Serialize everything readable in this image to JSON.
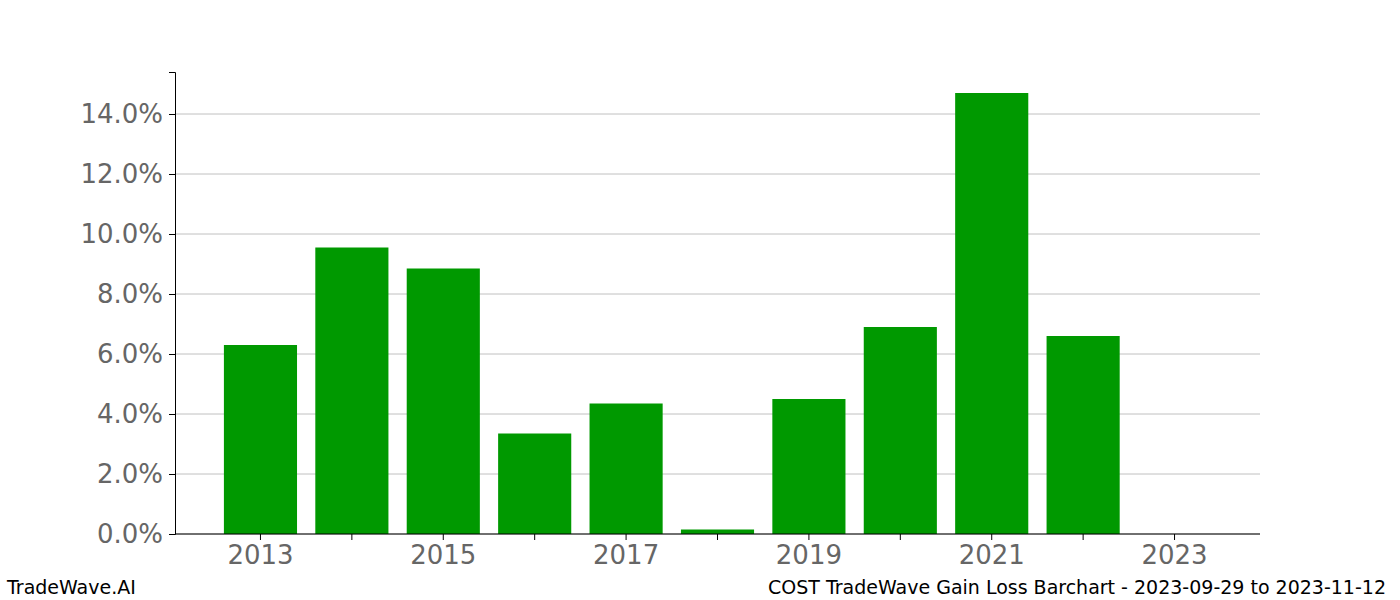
{
  "chart_data": {
    "type": "bar",
    "title": "COST TradeWave Gain Loss Barchart - 2023-09-29 to 2023-11-12",
    "subtitle": "TradeWave.AI",
    "categories": [
      "2013",
      null,
      "2015",
      null,
      "2017",
      null,
      "2019",
      null,
      "2021",
      null,
      "2023"
    ],
    "values": [
      6.3,
      9.55,
      8.85,
      3.35,
      4.35,
      0.15,
      4.5,
      6.9,
      14.7,
      6.6,
      null
    ],
    "color": "#009900",
    "ylim": [
      0,
      15.4
    ],
    "yticks": [
      {
        "value": 0,
        "label": "0.0%"
      },
      {
        "value": 2,
        "label": "2.0%"
      },
      {
        "value": 4,
        "label": "4.0%"
      },
      {
        "value": 6,
        "label": "6.0%"
      },
      {
        "value": 8,
        "label": "8.0%"
      },
      {
        "value": 10,
        "label": "10.0%"
      },
      {
        "value": 12,
        "label": "12.0%"
      },
      {
        "value": 14,
        "label": "14.0%"
      }
    ],
    "grid": true
  }
}
